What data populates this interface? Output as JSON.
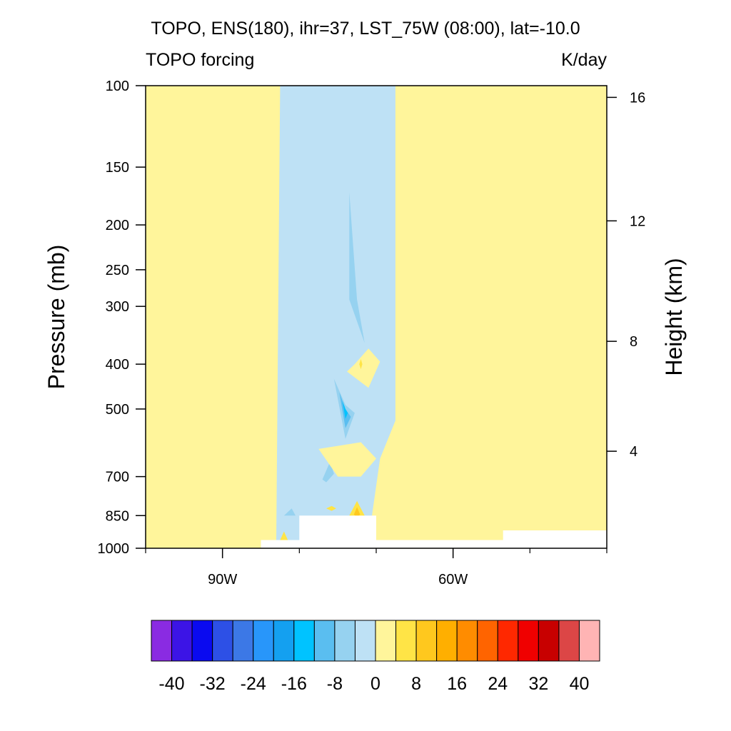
{
  "chart_data": {
    "type": "heatmap",
    "title": "TOPO, ENS(180), ihr=37, LST_75W (08:00), lat=-10.0",
    "subtitle_left": "TOPO forcing",
    "subtitle_right": "K/day",
    "ylabel": "Pressure (mb)",
    "y2label": "Height (km)",
    "xlim": [
      -100,
      -40
    ],
    "ylim": [
      1000,
      100
    ],
    "y_log": true,
    "x_ticks": [
      {
        "value": -90,
        "label": "90W"
      },
      {
        "value": -60,
        "label": "60W"
      }
    ],
    "x_minor_ticks": [
      -100,
      -80,
      -70,
      -50,
      -40
    ],
    "y_ticks": [
      {
        "value": 100,
        "label": "100"
      },
      {
        "value": 150,
        "label": "150"
      },
      {
        "value": 200,
        "label": "200"
      },
      {
        "value": 250,
        "label": "250"
      },
      {
        "value": 300,
        "label": "300"
      },
      {
        "value": 400,
        "label": "400"
      },
      {
        "value": 500,
        "label": "500"
      },
      {
        "value": 700,
        "label": "700"
      },
      {
        "value": 850,
        "label": "850"
      },
      {
        "value": 1000,
        "label": "1000"
      }
    ],
    "y2_ticks": [
      {
        "pressure": 106,
        "label": "16"
      },
      {
        "pressure": 196,
        "label": "12"
      },
      {
        "pressure": 357,
        "label": "8"
      },
      {
        "pressure": 617,
        "label": "4"
      }
    ],
    "levels": [
      -40,
      -36,
      -32,
      -28,
      -24,
      -20,
      -16,
      -12,
      -8,
      -4,
      0,
      4,
      8,
      12,
      16,
      20,
      24,
      28,
      32,
      36,
      40
    ],
    "colorbar_labels": [
      "-40",
      "-32",
      "-24",
      "-16",
      "-8",
      "0",
      "8",
      "16",
      "24",
      "32",
      "40"
    ],
    "colors": [
      "#8a2be2",
      "#3c14e6",
      "#0a0af0",
      "#2d50e6",
      "#3c78e6",
      "#2896fa",
      "#14a0f0",
      "#00c3ff",
      "#5abef0",
      "#96d2f0",
      "#bee1f5",
      "#fff59b",
      "#ffe446",
      "#ffc81e",
      "#ffaf00",
      "#ff8c00",
      "#ff6400",
      "#ff2800",
      "#f00000",
      "#c80000",
      "#dc4646",
      "#ffb4b4"
    ],
    "regions": [
      {
        "color_index": 11,
        "x": [
          -100,
          -40,
          -40,
          -100
        ],
        "p": [
          100,
          100,
          1000,
          1000
        ],
        "value": "0 to 4"
      },
      {
        "color_index": 10,
        "x": [
          -82.5,
          -67.5,
          -67.5,
          -69.5,
          -71,
          -83
        ],
        "p": [
          100,
          100,
          530,
          640,
          960,
          960
        ],
        "value": "-4 to 0"
      },
      {
        "color_index": 9,
        "x": [
          -73.5,
          -72.5,
          -71.5,
          -73.5
        ],
        "p": [
          170,
          290,
          360,
          290
        ],
        "value": "-8 to -4"
      },
      {
        "color_index": 8,
        "x": [
          -73.2,
          -72.5,
          -71.8,
          -72.5
        ],
        "p": [
          240,
          300,
          330,
          300
        ],
        "value": "-12 to -8"
      },
      {
        "color_index": 7,
        "x": [
          -72.7,
          -72.5,
          -72.3,
          -72.5
        ],
        "p": [
          280,
          300,
          320,
          300
        ],
        "value": "-16 to -12"
      },
      {
        "color_index": 9,
        "x": [
          -75.5,
          -74,
          -72.8,
          -74
        ],
        "p": [
          430,
          490,
          510,
          580
        ],
        "value": "-8 to -4"
      },
      {
        "color_index": 8,
        "x": [
          -74.8,
          -74,
          -73.3,
          -74
        ],
        "p": [
          460,
          500,
          520,
          550
        ],
        "value": "-12 to -8"
      },
      {
        "color_index": 7,
        "x": [
          -74.4,
          -74,
          -73.7,
          -74
        ],
        "p": [
          480,
          500,
          510,
          525
        ],
        "value": "-16 to -12"
      },
      {
        "color_index": 9,
        "x": [
          -77,
          -76,
          -75.5,
          -76.5
        ],
        "p": [
          710,
          650,
          690,
          720
        ],
        "value": "-8 to -4"
      },
      {
        "color_index": 11,
        "x": [
          -72.8,
          -71,
          -69.5,
          -71,
          -73.8
        ],
        "p": [
          400,
          370,
          395,
          450,
          415
        ],
        "value": "0 to 4"
      },
      {
        "color_index": 12,
        "x": [
          -72.2,
          -72,
          -71.8,
          -72
        ],
        "p": [
          400,
          390,
          400,
          410
        ],
        "value": "4 to 8"
      },
      {
        "color_index": 11,
        "x": [
          -77.5,
          -72,
          -70,
          -72,
          -75
        ],
        "p": [
          610,
          590,
          640,
          700,
          700
        ],
        "value": "0 to 4"
      },
      {
        "color_index": 12,
        "x": [
          -73.5,
          -72.5,
          -71.5,
          -72.5
        ],
        "p": [
          850,
          790,
          850,
          870
        ],
        "value": "4 to 8"
      },
      {
        "color_index": 13,
        "x": [
          -72.9,
          -72.5,
          -72.1,
          -72.5
        ],
        "p": [
          845,
          815,
          845,
          860
        ],
        "value": "8 to 12"
      },
      {
        "color_index": 12,
        "x": [
          -76.5,
          -75.8,
          -75.2,
          -75.8
        ],
        "p": [
          820,
          810,
          820,
          830
        ],
        "value": "4 to 8"
      },
      {
        "color_index": 12,
        "x": [
          -82.5,
          -82,
          -81.5
        ],
        "p": [
          960,
          920,
          960
        ],
        "value": "4 to 8"
      },
      {
        "color_index": 9,
        "x": [
          -82,
          -81,
          -80.5
        ],
        "p": [
          850,
          820,
          850
        ],
        "value": "-8 to -4"
      }
    ],
    "no_data": [
      {
        "x": [
          -85,
          -40,
          -40,
          -85
        ],
        "p": [
          960,
          960,
          1000,
          1000
        ]
      },
      {
        "x": [
          -80,
          -70,
          -70,
          -80
        ],
        "p": [
          850,
          850,
          960,
          960
        ]
      },
      {
        "x": [
          -70,
          -53.5,
          -53.5,
          -70
        ],
        "p": [
          960,
          960,
          1000,
          1000
        ]
      },
      {
        "x": [
          -53.5,
          -40,
          -40,
          -53.5
        ],
        "p": [
          915,
          915,
          1000,
          1000
        ]
      }
    ]
  }
}
